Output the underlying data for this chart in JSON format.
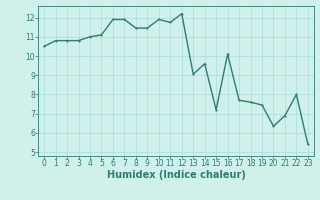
{
  "xlabel": "Humidex (Indice chaleur)",
  "x_values": [
    0,
    1,
    2,
    3,
    4,
    5,
    6,
    7,
    8,
    9,
    10,
    11,
    12,
    13,
    14,
    15,
    16,
    17,
    18,
    19,
    20,
    21,
    22,
    23
  ],
  "y_values": [
    10.5,
    10.8,
    10.8,
    10.8,
    11.0,
    11.1,
    11.9,
    11.9,
    11.45,
    11.45,
    11.9,
    11.75,
    12.2,
    9.05,
    9.6,
    7.2,
    10.1,
    7.7,
    7.6,
    7.45,
    6.35,
    6.9,
    8.0,
    5.4
  ],
  "line_color": "#2e7d6e",
  "marker": ".",
  "marker_size": 3,
  "line_width": 1.0,
  "bg_color": "#cff0eb",
  "grid_color": "#aaddda",
  "tick_color": "#2e7d6e",
  "label_color": "#2e7d6e",
  "ylim": [
    4.8,
    12.6
  ],
  "xlim": [
    -0.5,
    23.5
  ],
  "yticks": [
    5,
    6,
    7,
    8,
    9,
    10,
    11,
    12
  ],
  "xticks": [
    0,
    1,
    2,
    3,
    4,
    5,
    6,
    7,
    8,
    9,
    10,
    11,
    12,
    13,
    14,
    15,
    16,
    17,
    18,
    19,
    20,
    21,
    22,
    23
  ],
  "tick_label_fontsize": 5.5,
  "xlabel_fontsize": 7.0
}
